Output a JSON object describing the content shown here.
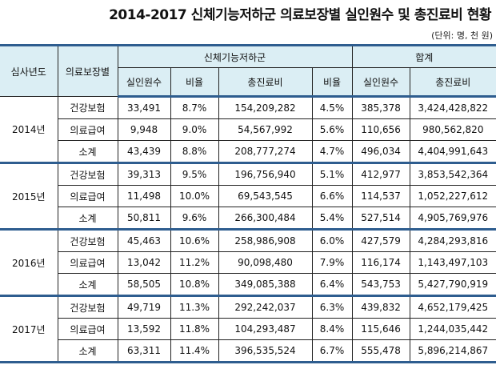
{
  "title": "2014-2017 신체기능저하군 의료보장별 실인원수 및 총진료비 현황",
  "unit": "(단위: 명, 천 원)",
  "headers": {
    "year": "심사년도",
    "type": "의료보장별",
    "group1": "신체기능저하군",
    "group2": "합계",
    "persons": "실인원수",
    "ratio": "비율",
    "cost": "총진료비",
    "persons2": "실인원수",
    "ratio2": "비율",
    "cost2": "총진료비",
    "cost_total": "총진료비"
  },
  "groups": [
    {
      "year": "2014년",
      "rows": [
        [
          "건강보험",
          "33,491",
          "8.7%",
          "154,209,282",
          "4.5%",
          "385,378",
          "3,424,428,822"
        ],
        [
          "의료급여",
          "9,948",
          "9.0%",
          "54,567,992",
          "5.6%",
          "110,656",
          "980,562,820"
        ],
        [
          "소계",
          "43,439",
          "8.8%",
          "208,777,274",
          "4.7%",
          "496,034",
          "4,404,991,643"
        ]
      ]
    },
    {
      "year": "2015년",
      "rows": [
        [
          "건강보험",
          "39,313",
          "9.5%",
          "196,756,940",
          "5.1%",
          "412,977",
          "3,853,542,364"
        ],
        [
          "의료급여",
          "11,498",
          "10.0%",
          "69,543,545",
          "6.6%",
          "114,537",
          "1,052,227,612"
        ],
        [
          "소계",
          "50,811",
          "9.6%",
          "266,300,484",
          "5.4%",
          "527,514",
          "4,905,769,976"
        ]
      ]
    },
    {
      "year": "2016년",
      "rows": [
        [
          "건강보험",
          "45,463",
          "10.6%",
          "258,986,908",
          "6.0%",
          "427,579",
          "4,284,293,816"
        ],
        [
          "의료급여",
          "13,042",
          "11.2%",
          "90,098,480",
          "7.9%",
          "116,174",
          "1,143,497,103"
        ],
        [
          "소계",
          "58,505",
          "10.8%",
          "349,085,388",
          "6.4%",
          "543,753",
          "5,427,790,919"
        ]
      ]
    },
    {
      "year": "2017년",
      "rows": [
        [
          "건강보험",
          "49,719",
          "11.3%",
          "292,242,037",
          "6.3%",
          "439,832",
          "4,652,179,425"
        ],
        [
          "의료급여",
          "13,592",
          "11.8%",
          "104,293,487",
          "8.4%",
          "115,646",
          "1,244,035,442"
        ],
        [
          "소계",
          "63,311",
          "11.4%",
          "396,535,524",
          "6.7%",
          "555,478",
          "5,896,214,867"
        ]
      ]
    }
  ]
}
